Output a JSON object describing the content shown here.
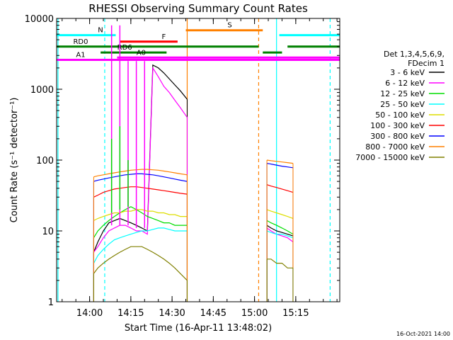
{
  "chart_data": {
    "type": "line",
    "title": "RHESSI Observing Summary Count Rates",
    "xlabel": "Start Time (16-Apr-11 13:48:02)",
    "ylabel": "Count Rate (s⁻¹ detector⁻¹)",
    "y_scale": "log",
    "ylim": [
      1,
      10000
    ],
    "x_unit": "minutes after 13:48:02",
    "xlim": [
      0,
      103
    ],
    "x_ticks": [
      {
        "label": "14:00",
        "value": 12
      },
      {
        "label": "14:15",
        "value": 27
      },
      {
        "label": "14:30",
        "value": 42
      },
      {
        "label": "14:45",
        "value": 57
      },
      {
        "label": "15:00",
        "value": 72
      },
      {
        "label": "15:15",
        "value": 87
      }
    ],
    "y_ticks": [
      {
        "label": "1",
        "value": 1
      },
      {
        "label": "10",
        "value": 10
      },
      {
        "label": "100",
        "value": 100
      },
      {
        "label": "1000",
        "value": 1000
      },
      {
        "label": "10000",
        "value": 10000
      }
    ],
    "legend": {
      "placement": "right",
      "header": [
        "Det 1,3,4,5,6,9,",
        "FDecim 1"
      ],
      "entries": [
        {
          "name": "3 - 6 keV",
          "color": "#000000"
        },
        {
          "name": "6 - 12 keV",
          "color": "#ff00ff"
        },
        {
          "name": "12 - 25 keV",
          "color": "#00dd00"
        },
        {
          "name": "25 - 50 keV",
          "color": "#00ffff"
        },
        {
          "name": "50 - 100 keV",
          "color": "#dddd00"
        },
        {
          "name": "100 - 300 keV",
          "color": "#ff0000"
        },
        {
          "name": "300 - 800 keV",
          "color": "#0000ff"
        },
        {
          "name": "800 - 7000 keV",
          "color": "#ff8000"
        },
        {
          "name": "7000 - 15000 keV",
          "color": "#808000"
        }
      ]
    },
    "status_bars": [
      {
        "label": "N",
        "color": "#00ffff",
        "y": 5800,
        "segments": [
          [
            0,
            21.5
          ],
          [
            81,
            103
          ]
        ]
      },
      {
        "label": "F",
        "color": "#ff0000",
        "y": 4700,
        "segments": [
          [
            23,
            44
          ]
        ]
      },
      {
        "label": "S",
        "color": "#ff8000",
        "y": 6800,
        "segments": [
          [
            47,
            75
          ]
        ]
      },
      {
        "label": "RD0",
        "color": "#008000",
        "y": 4000,
        "segments": [
          [
            0,
            73.5
          ],
          [
            84,
            103
          ]
        ]
      },
      {
        "label": "RD6",
        "color": "#008000",
        "y": 3300,
        "segments": [
          [
            16,
            40
          ],
          [
            75,
            82
          ]
        ]
      },
      {
        "label": "A0",
        "color": "#ff00ff",
        "y": 2800,
        "segments": [
          [
            22,
            103
          ]
        ]
      },
      {
        "label": "A1",
        "color": "#ff00ff",
        "y": 2600,
        "segments": [
          [
            0,
            103
          ]
        ]
      }
    ],
    "vertical_markers": [
      {
        "x": 0.5,
        "color": "#00ffff",
        "style": "solid"
      },
      {
        "x": 17.5,
        "color": "#00ffff",
        "style": "dashed"
      },
      {
        "x": 47.5,
        "color": "#ff8000",
        "style": "solid"
      },
      {
        "x": 73.5,
        "color": "#ff8000",
        "style": "dashed"
      },
      {
        "x": 80.0,
        "color": "#00ffff",
        "style": "solid"
      },
      {
        "x": 99.5,
        "color": "#00ffff",
        "style": "dashed"
      }
    ],
    "series": [
      {
        "name": "3 - 6 keV",
        "color": "#000000",
        "segments": [
          {
            "x": [
              13.5,
              15,
              17,
              19,
              21,
              23,
              25,
              27,
              29,
              31,
              33,
              35,
              37,
              39,
              41,
              43,
              45,
              47.5
            ],
            "y": [
              5,
              7,
              10,
              13,
              14,
              15,
              14,
              13,
              12,
              11,
              10,
              2200,
              2000,
              1700,
              1400,
              1150,
              950,
              720
            ]
          },
          {
            "x": [
              76.5,
              78,
              80,
              82,
              84,
              86
            ],
            "y": [
              12,
              11,
              10,
              9.5,
              9,
              8.5
            ]
          }
        ]
      },
      {
        "name": "6 - 12 keV",
        "color": "#ff00ff",
        "segments": [
          {
            "x": [
              13.5,
              15,
              17,
              19,
              21,
              23,
              25,
              27,
              29,
              31,
              33,
              35,
              37,
              39,
              41,
              43,
              45,
              47.5
            ],
            "y": [
              5,
              6,
              8,
              10,
              11,
              12,
              12,
              11,
              10,
              10,
              9,
              2000,
              1500,
              1100,
              900,
              700,
              550,
              400
            ]
          },
          {
            "x": [
              76.5,
              78,
              80,
              82,
              84,
              86
            ],
            "y": [
              11,
              10,
              9,
              8.5,
              8,
              7
            ]
          }
        ]
      },
      {
        "name": "12 - 25 keV",
        "color": "#00dd00",
        "segments": [
          {
            "x": [
              13.5,
              15,
              17,
              19,
              21,
              23,
              25,
              27,
              29,
              31,
              33,
              35,
              37,
              39,
              41,
              43,
              45,
              47.5
            ],
            "y": [
              8,
              10,
              12,
              14,
              16,
              18,
              20,
              22,
              20,
              18,
              16,
              15,
              14,
              13,
              13,
              12,
              12,
              12
            ]
          },
          {
            "x": [
              76.5,
              78,
              80,
              82,
              84,
              86
            ],
            "y": [
              14,
              13,
              12,
              11,
              10,
              9
            ]
          }
        ]
      },
      {
        "name": "25 - 50 keV",
        "color": "#00ffff",
        "segments": [
          {
            "x": [
              13.5,
              15,
              17,
              19,
              21,
              23,
              25,
              27,
              29,
              31,
              33,
              35,
              37,
              39,
              41,
              43,
              45,
              47.5
            ],
            "y": [
              3.5,
              4.5,
              5.5,
              6.5,
              7.5,
              8,
              8.5,
              9,
              9.5,
              10,
              10,
              10.5,
              11,
              11,
              10.5,
              10,
              10,
              10
            ]
          },
          {
            "x": [
              76.5,
              78,
              80,
              82,
              84,
              86
            ],
            "y": [
              10,
              9.5,
              9,
              9,
              8.5,
              8
            ]
          }
        ]
      },
      {
        "name": "50 - 100 keV",
        "color": "#dddd00",
        "segments": [
          {
            "x": [
              13.5,
              15,
              17,
              19,
              21,
              23,
              25,
              27,
              29,
              31,
              33,
              35,
              37,
              39,
              41,
              43,
              45,
              47.5
            ],
            "y": [
              14,
              15,
              16,
              17,
              18,
              18,
              19,
              19,
              20,
              20,
              19,
              19,
              18,
              18,
              17,
              17,
              16,
              16
            ]
          },
          {
            "x": [
              76.5,
              78,
              80,
              82,
              84,
              86
            ],
            "y": [
              20,
              19,
              18,
              17,
              16,
              15
            ]
          }
        ]
      },
      {
        "name": "100 - 300 keV",
        "color": "#ff0000",
        "segments": [
          {
            "x": [
              13.5,
              15,
              17,
              19,
              21,
              23,
              25,
              27,
              29,
              31,
              33,
              35,
              37,
              39,
              41,
              43,
              45,
              47.5
            ],
            "y": [
              30,
              32,
              35,
              37,
              39,
              40,
              41,
              42,
              42,
              41,
              40,
              39,
              38,
              37,
              36,
              35,
              34,
              33
            ]
          },
          {
            "x": [
              76.5,
              78,
              80,
              82,
              84,
              86
            ],
            "y": [
              45,
              43,
              41,
              39,
              37,
              35
            ]
          }
        ]
      },
      {
        "name": "300 - 800 keV",
        "color": "#0000ff",
        "segments": [
          {
            "x": [
              13.5,
              15,
              17,
              19,
              21,
              23,
              25,
              27,
              29,
              31,
              33,
              35,
              37,
              39,
              41,
              43,
              45,
              47.5
            ],
            "y": [
              50,
              52,
              54,
              56,
              58,
              60,
              62,
              63,
              64,
              64,
              63,
              62,
              60,
              58,
              56,
              54,
              52,
              50
            ]
          },
          {
            "x": [
              76.5,
              78,
              80,
              82,
              84,
              86
            ],
            "y": [
              90,
              88,
              85,
              82,
              80,
              78
            ]
          }
        ]
      },
      {
        "name": "800 - 7000 keV",
        "color": "#ff8000",
        "segments": [
          {
            "x": [
              13.5,
              15,
              17,
              19,
              21,
              23,
              25,
              27,
              29,
              31,
              33,
              35,
              37,
              39,
              41,
              43,
              45,
              47.5
            ],
            "y": [
              58,
              60,
              62,
              64,
              66,
              68,
              70,
              72,
              73,
              74,
              74,
              73,
              72,
              70,
              68,
              66,
              64,
              62
            ]
          },
          {
            "x": [
              76.5,
              78,
              80,
              82,
              84,
              86
            ],
            "y": [
              100,
              98,
              96,
              94,
              92,
              90
            ]
          }
        ]
      },
      {
        "name": "7000 - 15000 keV",
        "color": "#808000",
        "segments": [
          {
            "x": [
              13.5,
              15,
              17,
              19,
              21,
              23,
              25,
              27,
              29,
              31,
              33,
              35,
              37,
              39,
              41,
              43,
              45,
              47.5
            ],
            "y": [
              2.5,
              3,
              3.5,
              4,
              4.5,
              5,
              5.5,
              6,
              6,
              6,
              5.5,
              5,
              4.5,
              4,
              3.5,
              3,
              2.5,
              2
            ]
          },
          {
            "x": [
              76.5,
              78,
              80,
              82,
              84,
              86
            ],
            "y": [
              4,
              4,
              3.5,
              3.5,
              3,
              3
            ]
          }
        ]
      }
    ],
    "spikes": [
      {
        "color": "#ff00ff",
        "x": 20,
        "ybase": 12,
        "ypeak": 8000
      },
      {
        "color": "#ff00ff",
        "x": 23,
        "ybase": 12,
        "ypeak": 8000
      },
      {
        "color": "#ff00ff",
        "x": 26,
        "ybase": 12,
        "ypeak": 2500
      },
      {
        "color": "#ff00ff",
        "x": 29,
        "ybase": 11,
        "ypeak": 2500
      },
      {
        "color": "#ff00ff",
        "x": 32,
        "ybase": 11,
        "ypeak": 2500
      },
      {
        "color": "#00dd00",
        "x": 20,
        "ybase": 18,
        "ypeak": 200
      },
      {
        "color": "#00dd00",
        "x": 23,
        "ybase": 20,
        "ypeak": 300
      },
      {
        "color": "#00dd00",
        "x": 26,
        "ybase": 22,
        "ypeak": 100
      }
    ],
    "timestamp": "16-Oct-2021 14:00"
  }
}
